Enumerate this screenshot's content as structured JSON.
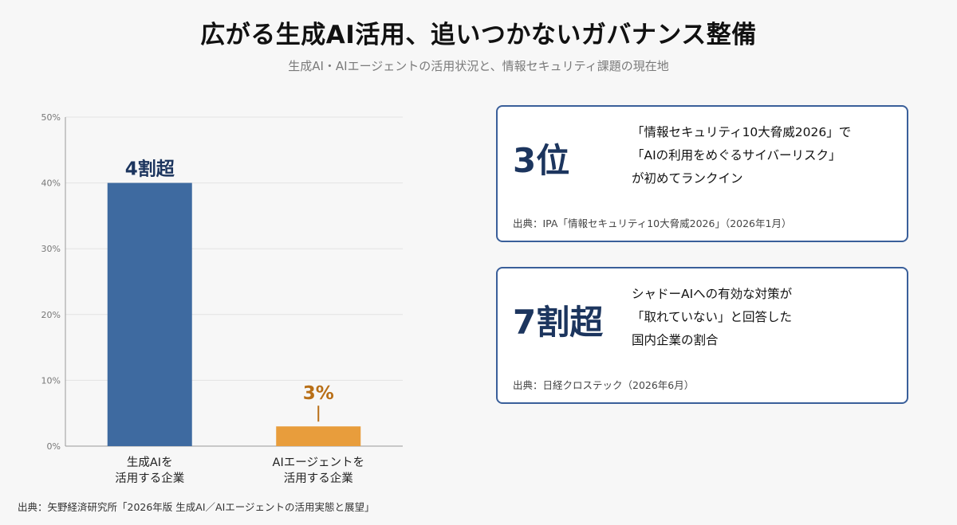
{
  "header": {
    "title": "広がる生成AI活用、追いつかないガバナンス整備",
    "subtitle": "生成AI・AIエージェントの活用状況と、情報セキュリティ課題の現在地"
  },
  "chart_data": {
    "type": "bar",
    "categories": [
      "生成AIを\n活用する企業",
      "AIエージェントを\n活用する企業"
    ],
    "values": [
      40,
      3
    ],
    "value_labels": [
      "4割超",
      "3%"
    ],
    "bar_colors": [
      "#3e6aa0",
      "#e89d3c"
    ],
    "label_colors": [
      "#1c355e",
      "#b86f17"
    ],
    "yticks": [
      "0%",
      "10%",
      "20%",
      "30%",
      "40%",
      "50%"
    ],
    "ylim": [
      0,
      50
    ],
    "grid": true
  },
  "chart_source": "出典：矢野経済研究所「2026年版 生成AI／AIエージェントの活用実態と展望」",
  "cards": [
    {
      "big": "3位",
      "desc": "「情報セキュリティ10大脅威2026」で\n「AIの利用をめぐるサイバーリスク」\nが初めてランクイン",
      "source": "出典：IPA「情報セキュリティ10大脅威2026」（2026年1月）"
    },
    {
      "big": "7割超",
      "desc": "シャドーAIへの有効な対策が\n「取れていない」と回答した\n国内企業の割合",
      "source": "出典：日経クロステック（2026年6月）"
    }
  ]
}
